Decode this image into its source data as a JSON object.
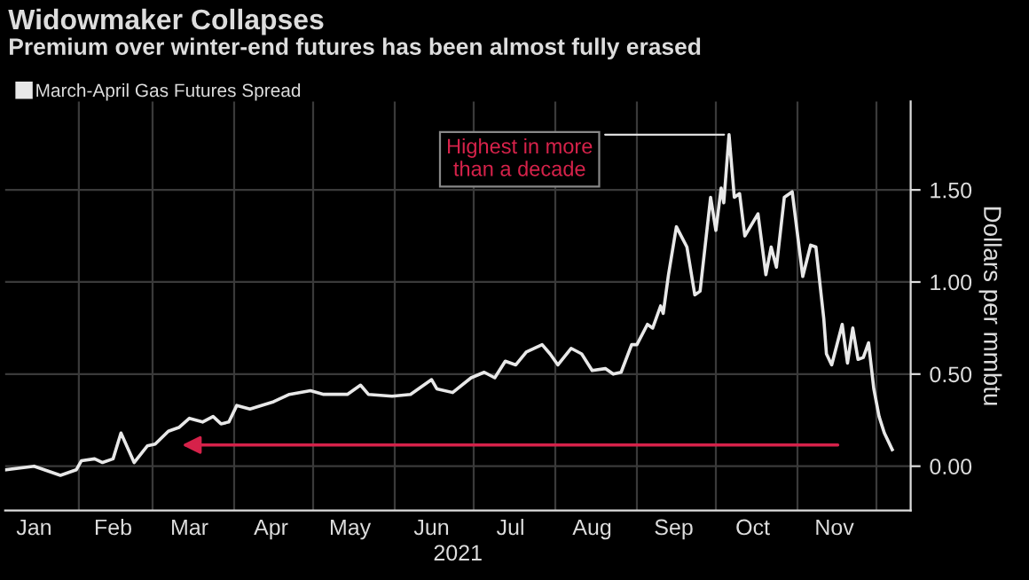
{
  "chart_data": {
    "type": "line",
    "title": "Widowmaker Collapses",
    "subtitle": "Premium over winter-end futures has been almost fully erased",
    "xlabel": "2021",
    "ylabel": "Dollars per mmbtu",
    "x": [
      "2021-01-04",
      "2021-01-15",
      "2021-01-25",
      "2021-01-31",
      "2021-02-02",
      "2021-02-07",
      "2021-02-10",
      "2021-02-14",
      "2021-02-17",
      "2021-02-22",
      "2021-02-27",
      "2021-03-02",
      "2021-03-07",
      "2021-03-11",
      "2021-03-15",
      "2021-03-20",
      "2021-03-24",
      "2021-03-27",
      "2021-03-30",
      "2021-04-02",
      "2021-04-07",
      "2021-04-16",
      "2021-04-22",
      "2021-04-30",
      "2021-05-05",
      "2021-05-14",
      "2021-05-19",
      "2021-05-22",
      "2021-05-31",
      "2021-06-07",
      "2021-06-15",
      "2021-06-17",
      "2021-06-23",
      "2021-06-30",
      "2021-07-05",
      "2021-07-09",
      "2021-07-13",
      "2021-07-17",
      "2021-07-21",
      "2021-07-27",
      "2021-07-30",
      "2021-08-02",
      "2021-08-07",
      "2021-08-11",
      "2021-08-15",
      "2021-08-20",
      "2021-08-23",
      "2021-08-26",
      "2021-08-30",
      "2021-09-01",
      "2021-09-05",
      "2021-09-07",
      "2021-09-10",
      "2021-09-11",
      "2021-09-13",
      "2021-09-16",
      "2021-09-20",
      "2021-09-23",
      "2021-09-25",
      "2021-09-29",
      "2021-10-01",
      "2021-10-03",
      "2021-10-04",
      "2021-10-06",
      "2021-10-08",
      "2021-10-10",
      "2021-10-12",
      "2021-10-17",
      "2021-10-20",
      "2021-10-22",
      "2021-10-24",
      "2021-10-27",
      "2021-10-30",
      "2021-11-03",
      "2021-11-06",
      "2021-11-08",
      "2021-11-11",
      "2021-11-12",
      "2021-11-14",
      "2021-11-18",
      "2021-11-20",
      "2021-11-22",
      "2021-11-24",
      "2021-11-26",
      "2021-11-28",
      "2021-11-30",
      "2021-12-02",
      "2021-12-04",
      "2021-12-07"
    ],
    "series": [
      {
        "name": "March-April Gas Futures Spread",
        "color": "#e8e8e8",
        "values": [
          -0.02,
          0.0,
          -0.05,
          -0.02,
          0.03,
          0.04,
          0.02,
          0.04,
          0.18,
          0.02,
          0.11,
          0.12,
          0.19,
          0.21,
          0.26,
          0.24,
          0.27,
          0.23,
          0.24,
          0.33,
          0.31,
          0.35,
          0.39,
          0.41,
          0.39,
          0.39,
          0.44,
          0.39,
          0.38,
          0.39,
          0.47,
          0.42,
          0.4,
          0.48,
          0.51,
          0.48,
          0.57,
          0.55,
          0.62,
          0.66,
          0.61,
          0.55,
          0.64,
          0.61,
          0.52,
          0.53,
          0.5,
          0.51,
          0.66,
          0.66,
          0.77,
          0.75,
          0.87,
          0.83,
          1.04,
          1.3,
          1.19,
          0.93,
          0.95,
          1.46,
          1.28,
          1.51,
          1.43,
          1.8,
          1.46,
          1.48,
          1.25,
          1.37,
          1.04,
          1.19,
          1.08,
          1.46,
          1.49,
          1.03,
          1.2,
          1.19,
          0.8,
          0.61,
          0.55,
          0.77,
          0.56,
          0.75,
          0.58,
          0.59,
          0.67,
          0.42,
          0.27,
          0.18,
          0.09
        ]
      }
    ],
    "xlim": [
      "2021-01-04",
      "2021-12-14"
    ],
    "xticks": [
      {
        "value": "2021-02-01",
        "label": null
      },
      {
        "value": "2021-03-01",
        "label": null
      },
      {
        "value": "2021-04-01",
        "label": null
      },
      {
        "value": "2021-05-01",
        "label": null
      },
      {
        "value": "2021-06-01",
        "label": null
      },
      {
        "value": "2021-07-01",
        "label": null
      },
      {
        "value": "2021-08-01",
        "label": null
      },
      {
        "value": "2021-09-01",
        "label": null
      },
      {
        "value": "2021-10-01",
        "label": null
      },
      {
        "value": "2021-11-01",
        "label": null
      },
      {
        "value": "2021-12-01",
        "label": null
      },
      {
        "value": "2021-01-15",
        "label": "Jan"
      },
      {
        "value": "2021-02-14",
        "label": "Feb"
      },
      {
        "value": "2021-03-15",
        "label": "Mar"
      },
      {
        "value": "2021-04-15",
        "label": "Apr"
      },
      {
        "value": "2021-05-15",
        "label": "May"
      },
      {
        "value": "2021-06-15",
        "label": "Jun"
      },
      {
        "value": "2021-07-15",
        "label": "Jul"
      },
      {
        "value": "2021-08-15",
        "label": "Aug"
      },
      {
        "value": "2021-09-15",
        "label": "Sep"
      },
      {
        "value": "2021-10-15",
        "label": "Oct"
      },
      {
        "value": "2021-11-15",
        "label": "Nov"
      }
    ],
    "ylim": [
      -0.24,
      1.98
    ],
    "yticks": [
      {
        "value": 0,
        "label": "0.00"
      },
      {
        "value": 0.5,
        "label": "0.50"
      },
      {
        "value": 1.0,
        "label": "1.00"
      },
      {
        "value": 1.5,
        "label": "1.50"
      }
    ],
    "grid": true,
    "legend": "top left",
    "marker": "none",
    "line_style": "solid",
    "annotations": [
      {
        "text": "Highest in more\nthan a decade",
        "x": "2021-10-06",
        "y": 1.8
      }
    ]
  }
}
